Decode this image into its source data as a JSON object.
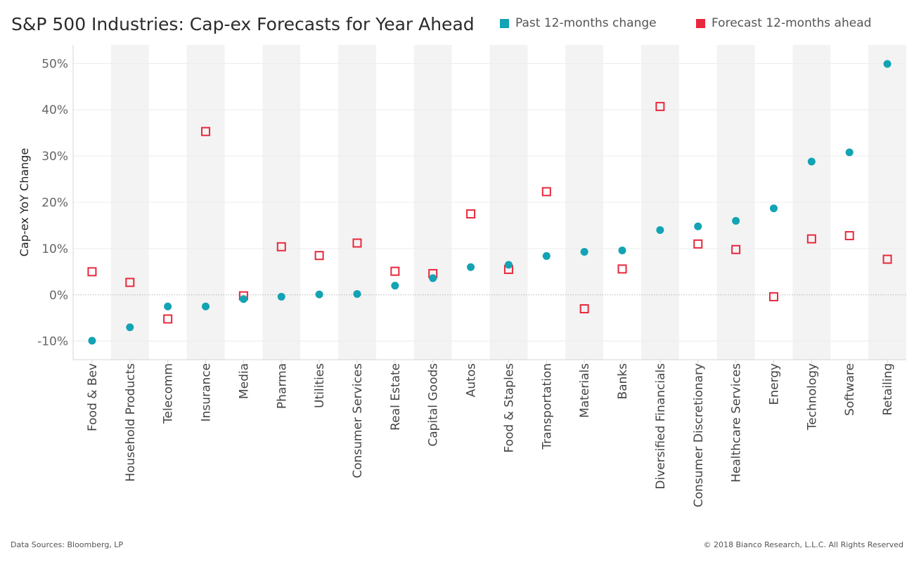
{
  "title": "S&P 500 Industries: Cap-ex Forecasts for Year Ahead",
  "legend": {
    "past": "Past 12-months change",
    "forecast": "Forecast 12-months ahead"
  },
  "footer": {
    "source": "Data Sources: Bloomberg, LP",
    "copyright": "© 2018 Bianco Research, L.L.C. All Rights Reserved"
  },
  "colors": {
    "past": "#12a3b4",
    "forecast": "#e8283c",
    "band": "#f3f3f3"
  },
  "chart_data": {
    "type": "scatter",
    "ylabel": "Cap-ex YoY Change",
    "xlabel": "",
    "ylim": [
      -14,
      54
    ],
    "yticks": [
      {
        "value": 50,
        "label": "50%"
      },
      {
        "value": 40,
        "label": "40%"
      },
      {
        "value": 30,
        "label": "30%"
      },
      {
        "value": 20,
        "label": "20%"
      },
      {
        "value": 10,
        "label": "10%"
      },
      {
        "value": 0,
        "label": "0%"
      },
      {
        "value": -10,
        "label": "-10%"
      }
    ],
    "grid": true,
    "legend_position": "top-right",
    "categories": [
      "Food & Bev",
      "Household Products",
      "Telecomm",
      "Insurance",
      "Media",
      "Pharma",
      "Utilities",
      "Consumer Services",
      "Real Estate",
      "Capital Goods",
      "Autos",
      "Food & Staples",
      "Transportation",
      "Materials",
      "Banks",
      "Diversified Financials",
      "Consumer Discretionary",
      "Healthcare Services",
      "Energy",
      "Technology",
      "Software",
      "Retailing"
    ],
    "series": [
      {
        "name": "Past 12-months change",
        "marker": "circle",
        "values": [
          -9.9,
          -7.0,
          -2.5,
          -2.5,
          -0.9,
          -0.4,
          0.1,
          0.2,
          2.0,
          3.6,
          6.0,
          6.5,
          8.4,
          9.3,
          9.6,
          14.0,
          14.8,
          16.0,
          18.7,
          28.8,
          30.8,
          49.9
        ]
      },
      {
        "name": "Forecast 12-months ahead",
        "marker": "square-open",
        "values": [
          5.0,
          2.7,
          -5.2,
          35.3,
          -0.2,
          10.4,
          8.5,
          11.2,
          5.1,
          4.6,
          17.5,
          5.5,
          22.3,
          -3.0,
          5.6,
          40.7,
          11.0,
          9.8,
          -0.4,
          12.1,
          12.8,
          7.7
        ]
      }
    ]
  }
}
